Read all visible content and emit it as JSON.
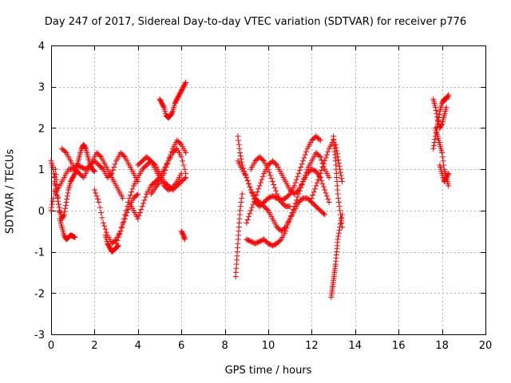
{
  "chart_data": {
    "type": "scatter",
    "title": "Day 247 of 2017, Sidereal Day-to-day VTEC variation (SDTVAR) for receiver p776",
    "xlabel": "GPS time / hours",
    "ylabel": "SDTVAR / TECUs",
    "xlim": [
      0,
      20
    ],
    "ylim": [
      -3,
      4
    ],
    "xticks": [
      0,
      2,
      4,
      6,
      8,
      10,
      12,
      14,
      16,
      18,
      20
    ],
    "yticks": [
      -3,
      -2,
      -1,
      0,
      1,
      2,
      3,
      4
    ],
    "grid": true,
    "marker": "+",
    "series": [
      {
        "name": "SDTVAR",
        "color": "#ff0000",
        "segments": [
          {
            "x": [
              0.0,
              0.1,
              0.2,
              0.3,
              0.4,
              0.5,
              0.6,
              0.7,
              0.8,
              0.9,
              1.0,
              1.1
            ],
            "y": [
              0.0,
              0.3,
              1.0,
              0.5,
              -0.2,
              -0.4,
              -0.6,
              -0.7,
              -0.65,
              -0.6,
              -0.62,
              -0.65
            ]
          },
          {
            "x": [
              0.0,
              0.1,
              0.2,
              0.3,
              0.4,
              0.5,
              0.6,
              0.7,
              0.8,
              0.9,
              1.0,
              1.1,
              1.2,
              1.3,
              1.4,
              1.5,
              1.6,
              1.7,
              1.8,
              1.9,
              2.0
            ],
            "y": [
              1.2,
              1.0,
              0.6,
              0.3,
              0.0,
              -0.2,
              -0.1,
              0.2,
              0.5,
              0.7,
              0.8,
              0.9,
              1.1,
              1.3,
              1.5,
              1.6,
              1.5,
              1.3,
              1.1,
              1.0,
              0.95
            ]
          },
          {
            "x": [
              0.2,
              0.4,
              0.6,
              0.8,
              1.0,
              1.2,
              1.4,
              1.6,
              1.8,
              2.0,
              2.2,
              2.4,
              2.6,
              2.8,
              3.0,
              3.2,
              3.4,
              3.6,
              3.8,
              4.0
            ],
            "y": [
              0.4,
              0.6,
              0.8,
              1.0,
              1.0,
              1.1,
              1.05,
              1.0,
              1.1,
              1.2,
              1.1,
              1.0,
              0.8,
              0.9,
              1.2,
              1.4,
              1.3,
              1.1,
              0.9,
              0.7
            ]
          },
          {
            "x": [
              0.5,
              0.7,
              0.9,
              1.1,
              1.3,
              1.5,
              1.7,
              1.9,
              2.1,
              2.3,
              2.5,
              2.7,
              2.9,
              3.1,
              3.3
            ],
            "y": [
              1.5,
              1.4,
              1.2,
              1.0,
              0.9,
              0.8,
              1.0,
              1.2,
              1.4,
              1.3,
              1.1,
              0.9,
              0.7,
              0.5,
              0.3
            ]
          },
          {
            "x": [
              2.0,
              2.2,
              2.4,
              2.6,
              2.8,
              3.0,
              3.2,
              3.4,
              3.6,
              3.8,
              4.0
            ],
            "y": [
              0.5,
              0.2,
              -0.3,
              -0.6,
              -0.8,
              -0.7,
              -0.5,
              -0.2,
              0.1,
              0.3,
              0.4
            ]
          },
          {
            "x": [
              2.5,
              2.6,
              2.7,
              2.8,
              2.9,
              3.0,
              3.1
            ],
            "y": [
              -0.6,
              -0.8,
              -0.9,
              -1.0,
              -0.95,
              -0.9,
              -0.85
            ]
          },
          {
            "x": [
              3.0,
              3.2,
              3.4,
              3.6,
              3.8,
              4.0,
              4.2,
              4.4,
              4.6,
              4.8,
              5.0,
              5.2,
              5.4,
              5.6,
              5.8,
              6.0,
              6.2
            ],
            "y": [
              -0.8,
              -0.5,
              -0.1,
              0.3,
              0.6,
              0.8,
              1.0,
              1.1,
              1.2,
              1.1,
              0.9,
              0.7,
              0.6,
              0.5,
              0.6,
              0.7,
              0.8
            ]
          },
          {
            "x": [
              3.6,
              3.8,
              4.0,
              4.2,
              4.4,
              4.6,
              4.8,
              5.0,
              5.2,
              5.4,
              5.6,
              5.8,
              6.0,
              6.2
            ],
            "y": [
              0.2,
              0.0,
              -0.2,
              0.1,
              0.4,
              0.6,
              0.7,
              0.8,
              1.0,
              1.2,
              1.4,
              1.5,
              1.3,
              0.9
            ]
          },
          {
            "x": [
              4.0,
              4.2,
              4.4,
              4.6,
              4.8,
              5.0,
              5.2,
              5.4,
              5.6,
              5.8,
              6.0
            ],
            "y": [
              1.1,
              1.2,
              1.3,
              1.2,
              1.0,
              0.8,
              0.6,
              0.5,
              0.55,
              0.7,
              0.9
            ]
          },
          {
            "x": [
              4.6,
              4.8,
              5.0,
              5.2,
              5.4,
              5.6,
              5.8,
              6.0,
              6.2
            ],
            "y": [
              0.4,
              0.55,
              0.7,
              0.9,
              1.2,
              1.5,
              1.7,
              1.6,
              1.4
            ]
          },
          {
            "x": [
              5.0,
              5.1,
              5.2,
              5.3,
              5.4,
              5.5,
              5.6,
              5.7,
              5.8,
              5.9,
              6.0,
              6.1,
              6.2
            ],
            "y": [
              2.7,
              2.6,
              2.5,
              2.3,
              2.25,
              2.3,
              2.4,
              2.6,
              2.7,
              2.8,
              2.9,
              3.0,
              3.1
            ]
          },
          {
            "x": [
              6.0,
              6.1,
              6.15
            ],
            "y": [
              -0.5,
              -0.6,
              -0.7
            ]
          },
          {
            "x": [
              8.5,
              8.55,
              8.6,
              8.65,
              8.7,
              8.8
            ],
            "y": [
              -1.6,
              -1.2,
              -0.8,
              -0.4,
              0.0,
              0.4
            ]
          },
          {
            "x": [
              8.6,
              8.7,
              8.8,
              9.0,
              9.2,
              9.4,
              9.6,
              9.8,
              10.0,
              10.2,
              10.4,
              10.6,
              10.8,
              11.0,
              11.2,
              11.4,
              11.6,
              11.8,
              12.0,
              12.2,
              12.4
            ],
            "y": [
              1.8,
              1.4,
              1.1,
              0.8,
              0.5,
              0.2,
              0.1,
              0.2,
              0.3,
              0.35,
              0.3,
              0.25,
              0.3,
              0.4,
              0.6,
              0.9,
              1.2,
              1.5,
              1.7,
              1.8,
              1.7
            ]
          },
          {
            "x": [
              8.6,
              8.8,
              9.0,
              9.2,
              9.4,
              9.6,
              9.8,
              10.0,
              10.2,
              10.4,
              10.6,
              10.8,
              11.0,
              11.2,
              11.4,
              11.6,
              11.8,
              12.0,
              12.2,
              12.4,
              12.6,
              12.8
            ],
            "y": [
              1.2,
              1.0,
              0.8,
              0.5,
              0.3,
              0.2,
              0.1,
              0.0,
              -0.2,
              -0.4,
              -0.5,
              -0.4,
              -0.2,
              0.1,
              0.4,
              0.7,
              1.0,
              1.2,
              1.4,
              1.3,
              1.0,
              0.8
            ]
          },
          {
            "x": [
              9.0,
              9.2,
              9.4,
              9.6,
              9.8,
              10.0,
              10.2,
              10.4,
              10.6,
              10.8,
              11.0,
              11.2,
              11.4,
              11.6,
              11.8,
              12.0,
              12.2,
              12.4,
              12.6
            ],
            "y": [
              -0.7,
              -0.75,
              -0.8,
              -0.75,
              -0.7,
              -0.8,
              -0.85,
              -0.8,
              -0.7,
              -0.5,
              -0.2,
              0.0,
              0.2,
              0.3,
              0.3,
              0.2,
              0.1,
              0.0,
              -0.1
            ]
          },
          {
            "x": [
              9.0,
              9.2,
              9.4,
              9.6,
              9.8,
              10.0,
              10.2,
              10.4,
              10.6,
              10.8,
              11.0,
              11.2,
              11.4,
              11.6,
              11.8,
              12.0,
              12.2,
              12.4,
              12.6,
              12.8
            ],
            "y": [
              -0.3,
              0.0,
              0.3,
              0.6,
              0.9,
              1.1,
              1.2,
              1.1,
              0.9,
              0.7,
              0.5,
              0.4,
              0.5,
              0.7,
              0.9,
              1.0,
              0.95,
              0.8,
              0.5,
              0.2
            ]
          },
          {
            "x": [
              9.2,
              9.4,
              9.6,
              9.8,
              10.0,
              10.2,
              10.4,
              10.6,
              10.8,
              11.0
            ],
            "y": [
              1.0,
              1.2,
              1.3,
              1.2,
              1.0,
              0.7,
              0.4,
              0.2,
              0.1,
              0.1
            ]
          },
          {
            "x": [
              12.0,
              12.2,
              12.4,
              12.6,
              12.8,
              13.0
            ],
            "y": [
              0.3,
              0.6,
              0.9,
              1.2,
              1.5,
              1.7
            ]
          },
          {
            "x": [
              13.0,
              13.05,
              13.1,
              13.15,
              13.2,
              13.3,
              13.4
            ],
            "y": [
              1.8,
              1.5,
              1.2,
              0.8,
              0.4,
              0.0,
              -0.4
            ]
          },
          {
            "x": [
              12.9,
              12.95,
              13.0,
              13.05,
              13.1,
              13.15,
              13.2,
              13.3,
              13.4
            ],
            "y": [
              -2.1,
              -1.9,
              -1.7,
              -1.5,
              -1.3,
              -1.0,
              -0.7,
              -0.4,
              -0.1
            ]
          },
          {
            "x": [
              13.1,
              13.2,
              13.3,
              13.4
            ],
            "y": [
              1.6,
              1.3,
              1.0,
              0.7
            ]
          },
          {
            "x": [
              17.6,
              17.7,
              17.8,
              17.9,
              18.0,
              18.1,
              18.2,
              18.3
            ],
            "y": [
              1.5,
              1.8,
              2.1,
              2.4,
              2.6,
              2.7,
              2.7,
              2.8
            ]
          },
          {
            "x": [
              17.6,
              17.7,
              17.8,
              17.9,
              18.0,
              18.1,
              18.2
            ],
            "y": [
              2.7,
              2.5,
              2.2,
              2.0,
              2.1,
              2.3,
              2.5
            ]
          },
          {
            "x": [
              17.7,
              17.8,
              17.9,
              18.0,
              18.1,
              18.2,
              18.3
            ],
            "y": [
              2.0,
              1.8,
              1.6,
              1.4,
              1.0,
              0.8,
              0.6
            ]
          },
          {
            "x": [
              17.9,
              18.0,
              18.1,
              18.2,
              18.3
            ],
            "y": [
              1.1,
              0.9,
              0.7,
              0.8,
              0.9
            ]
          }
        ]
      }
    ]
  }
}
